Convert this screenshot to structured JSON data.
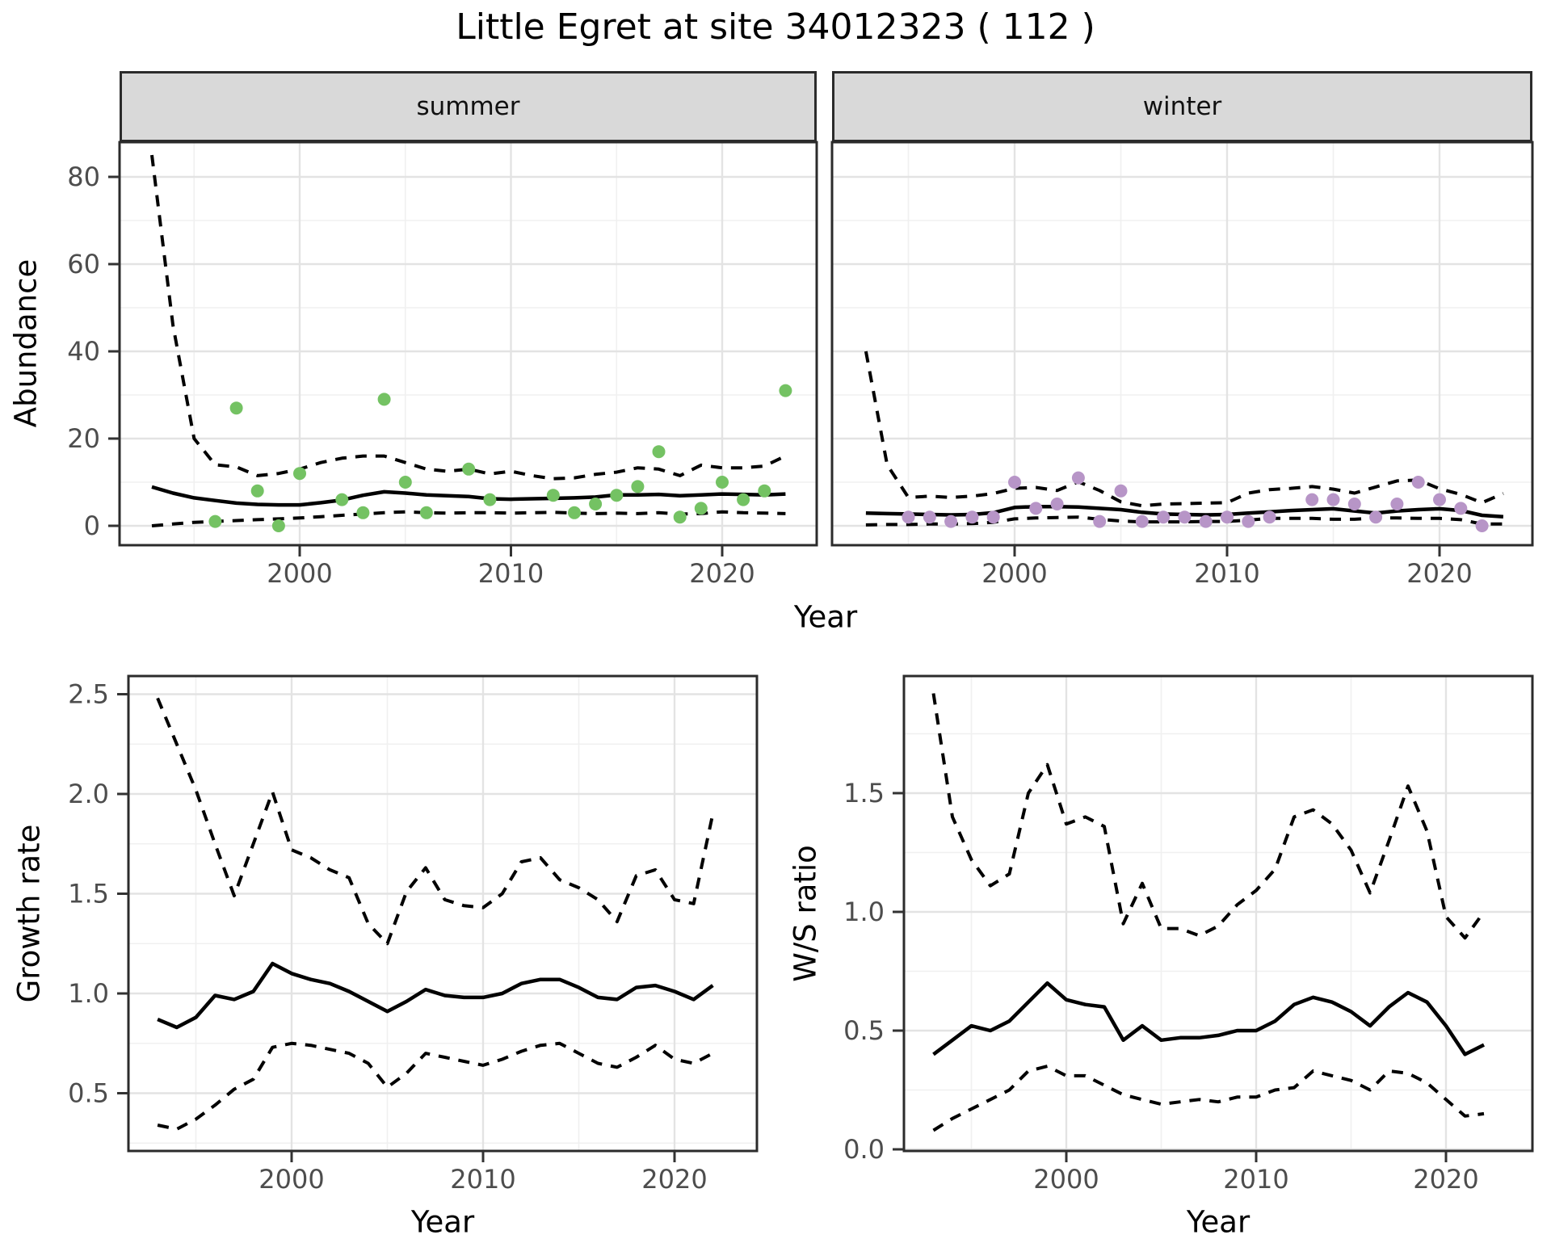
{
  "title": "Little Egret at site 34012323 ( 112 )",
  "axes": {
    "top_y_label": "Abundance",
    "top_x_label": "Year",
    "bottom_left_y_label": "Growth rate",
    "bottom_left_x_label": "Year",
    "bottom_right_y_label": "W/S ratio",
    "bottom_right_x_label": "Year"
  },
  "colors": {
    "summer_point": "#74c263",
    "winter_point": "#b795c7",
    "line": "#000000",
    "panel_border": "#2b2b2b",
    "strip_bg": "#d9d9d9",
    "grid_major": "#e3e3e3",
    "grid_minor": "#f0f0f0",
    "tick_mark": "#333333",
    "tick_text": "#4d4d4d"
  },
  "chart_data": [
    {
      "id": "abundance-summer",
      "type": "scatter",
      "facet_label": "summer",
      "xlabel": "Year",
      "ylabel": "Abundance",
      "xlim": [
        1991.4,
        2024.5
      ],
      "ylim": [
        -4.4,
        88
      ],
      "x_tick_values": [
        2000,
        2010,
        2020
      ],
      "x_tick_labels": [
        "2000",
        "2010",
        "2020"
      ],
      "x_minor": [
        1995,
        2005,
        2015
      ],
      "y_tick_values": [
        0,
        20,
        40,
        60,
        80
      ],
      "y_tick_labels": [
        "0",
        "20",
        "40",
        "60",
        "80"
      ],
      "y_minor": [
        10,
        30,
        50,
        70
      ],
      "point_color": "#74c263",
      "points": {
        "x": [
          1996,
          1997,
          1998,
          1999,
          2000,
          2002,
          2003,
          2004,
          2005,
          2006,
          2008,
          2009,
          2012,
          2013,
          2014,
          2015,
          2016,
          2017,
          2018,
          2019,
          2020,
          2021,
          2022,
          2023
        ],
        "y": [
          1,
          27,
          8,
          0,
          12,
          6,
          3,
          29,
          10,
          3,
          13,
          6,
          7,
          3,
          5,
          7,
          9,
          17,
          2,
          4,
          10,
          6,
          8,
          31
        ]
      },
      "series": [
        {
          "name": "mean",
          "style": "solid",
          "x_start": 1993,
          "values": [
            8.9,
            7.5,
            6.4,
            5.8,
            5.2,
            4.9,
            4.8,
            4.8,
            5.3,
            5.9,
            7.0,
            7.8,
            7.5,
            7.1,
            6.9,
            6.7,
            6.2,
            6.1,
            6.2,
            6.3,
            6.4,
            6.6,
            7.1,
            7.1,
            7.2,
            6.9,
            7.1,
            7.3,
            7.2,
            7.1,
            7.3
          ]
        },
        {
          "name": "upper-ci",
          "style": "dashed",
          "x_start": 1993,
          "values": [
            85,
            46,
            20,
            14,
            13.5,
            11.5,
            12,
            13,
            14.5,
            15.5,
            16,
            16,
            14.5,
            13,
            12.5,
            13,
            11.9,
            12.5,
            11.5,
            10.8,
            11,
            11.8,
            12.3,
            13.3,
            13,
            11.5,
            13.9,
            13.3,
            13.3,
            13.7,
            16
          ]
        },
        {
          "name": "lower-ci",
          "style": "dashed",
          "x_start": 1993,
          "values": [
            0,
            0.4,
            0.8,
            1.0,
            1.2,
            1.4,
            1.6,
            1.8,
            2.1,
            2.4,
            2.7,
            3.0,
            3.2,
            3.0,
            2.9,
            3.0,
            3.0,
            2.9,
            3.0,
            3.1,
            2.9,
            2.8,
            2.9,
            2.8,
            3.0,
            2.7,
            2.8,
            3.2,
            3.0,
            2.9,
            2.8
          ]
        }
      ]
    },
    {
      "id": "abundance-winter",
      "type": "scatter",
      "facet_label": "winter",
      "xlabel": "Year",
      "ylabel": "Abundance",
      "xlim": [
        1991.4,
        2024.4
      ],
      "ylim": [
        -4.4,
        88
      ],
      "x_tick_values": [
        2000,
        2010,
        2020
      ],
      "x_tick_labels": [
        "2000",
        "2010",
        "2020"
      ],
      "x_minor": [
        1995,
        2005,
        2015
      ],
      "y_tick_values": [],
      "y_tick_labels": [],
      "y_minor": [
        10,
        30,
        50,
        70
      ],
      "point_color": "#b795c7",
      "points": {
        "x": [
          1995,
          1996,
          1997,
          1998,
          1999,
          2000,
          2001,
          2002,
          2003,
          2004,
          2005,
          2006,
          2007,
          2008,
          2009,
          2010,
          2011,
          2012,
          2014,
          2015,
          2016,
          2017,
          2018,
          2019,
          2020,
          2021,
          2022
        ],
        "y": [
          2,
          2,
          1,
          2,
          2,
          10,
          4,
          5,
          11,
          1,
          8,
          1,
          2,
          2,
          1,
          2,
          1,
          2,
          6,
          6,
          5,
          2,
          5,
          10,
          6,
          4,
          0
        ]
      },
      "series": [
        {
          "name": "mean",
          "style": "solid",
          "x_start": 1993,
          "values": [
            2.9,
            2.8,
            2.7,
            2.6,
            2.5,
            2.6,
            3.0,
            4.2,
            4.4,
            4.4,
            4.3,
            4.0,
            3.7,
            3.1,
            2.7,
            2.6,
            2.5,
            2.6,
            2.9,
            3.2,
            3.5,
            3.7,
            3.9,
            3.4,
            2.9,
            3.4,
            3.7,
            3.9,
            3.5,
            2.4,
            2.1
          ]
        },
        {
          "name": "upper-ci",
          "style": "dashed",
          "x_start": 1993,
          "values": [
            40,
            14,
            6.5,
            6.8,
            6.5,
            6.8,
            7.4,
            8.6,
            8.8,
            8.1,
            10.1,
            8.1,
            5.5,
            4.6,
            5.0,
            5.1,
            5.2,
            5.3,
            7.5,
            8.3,
            8.6,
            9.0,
            8.4,
            7.5,
            8.9,
            10.3,
            10.5,
            8.5,
            7.2,
            5.3,
            7.4
          ]
        },
        {
          "name": "lower-ci",
          "style": "dashed",
          "x_start": 1993,
          "values": [
            0.2,
            0.3,
            0.3,
            0.4,
            0.4,
            0.5,
            0.8,
            1.6,
            1.8,
            1.9,
            2.0,
            1.5,
            1.1,
            0.9,
            0.9,
            0.9,
            1.0,
            1.0,
            1.3,
            1.7,
            1.7,
            1.7,
            1.5,
            1.5,
            1.8,
            1.8,
            1.7,
            1.7,
            1.4,
            0.4,
            0.4
          ]
        }
      ]
    },
    {
      "id": "growth-rate",
      "type": "line",
      "facet_label": "",
      "xlabel": "Year",
      "ylabel": "Growth rate",
      "xlim": [
        1991.4,
        2024.4
      ],
      "ylim": [
        0.21,
        2.59
      ],
      "x_tick_values": [
        2000,
        2010,
        2020
      ],
      "x_tick_labels": [
        "2000",
        "2010",
        "2020"
      ],
      "x_minor": [
        1995,
        2005,
        2015
      ],
      "y_tick_values": [
        0.5,
        1.0,
        1.5,
        2.0,
        2.5
      ],
      "y_tick_labels": [
        "0.5",
        "1.0",
        "1.5",
        "2.0",
        "2.5"
      ],
      "y_minor": [
        0.25,
        0.75,
        1.25,
        1.75,
        2.25
      ],
      "series": [
        {
          "name": "mean",
          "style": "solid",
          "x_start": 1993,
          "values": [
            0.87,
            0.83,
            0.88,
            0.99,
            0.97,
            1.01,
            1.15,
            1.1,
            1.07,
            1.05,
            1.01,
            0.96,
            0.91,
            0.96,
            1.02,
            0.99,
            0.98,
            0.98,
            1.0,
            1.05,
            1.07,
            1.07,
            1.03,
            0.98,
            0.97,
            1.03,
            1.04,
            1.01,
            0.97,
            1.04
          ]
        },
        {
          "name": "upper-ci",
          "style": "dashed",
          "x_start": 1993,
          "values": [
            2.48,
            2.25,
            2.02,
            1.75,
            1.49,
            1.75,
            2.01,
            1.72,
            1.68,
            1.62,
            1.58,
            1.35,
            1.25,
            1.51,
            1.63,
            1.47,
            1.44,
            1.43,
            1.5,
            1.66,
            1.68,
            1.57,
            1.53,
            1.47,
            1.36,
            1.59,
            1.62,
            1.47,
            1.45,
            1.9
          ]
        },
        {
          "name": "lower-ci",
          "style": "dashed",
          "x_start": 1993,
          "values": [
            0.34,
            0.32,
            0.37,
            0.44,
            0.52,
            0.57,
            0.73,
            0.75,
            0.74,
            0.72,
            0.7,
            0.65,
            0.53,
            0.6,
            0.7,
            0.68,
            0.66,
            0.64,
            0.67,
            0.71,
            0.74,
            0.75,
            0.7,
            0.65,
            0.63,
            0.68,
            0.74,
            0.67,
            0.65,
            0.7
          ]
        }
      ]
    },
    {
      "id": "ws-ratio",
      "type": "line",
      "facet_label": "",
      "xlabel": "Year",
      "ylabel": "W/S ratio",
      "xlim": [
        1991.4,
        2024.4
      ],
      "ylim": [
        -0.01,
        1.99
      ],
      "x_tick_values": [
        2000,
        2010,
        2020
      ],
      "x_tick_labels": [
        "2000",
        "2010",
        "2020"
      ],
      "x_minor": [
        1995,
        2005,
        2015
      ],
      "y_tick_values": [
        0.0,
        0.5,
        1.0,
        1.5
      ],
      "y_tick_labels": [
        "0.0",
        "0.5",
        "1.0",
        "1.5"
      ],
      "y_minor": [
        0.25,
        0.75,
        1.25,
        1.75
      ],
      "series": [
        {
          "name": "mean",
          "style": "solid",
          "x_start": 1993,
          "values": [
            0.4,
            0.46,
            0.52,
            0.5,
            0.54,
            0.62,
            0.7,
            0.63,
            0.61,
            0.6,
            0.46,
            0.52,
            0.46,
            0.47,
            0.47,
            0.48,
            0.5,
            0.5,
            0.54,
            0.61,
            0.64,
            0.62,
            0.58,
            0.52,
            0.6,
            0.66,
            0.62,
            0.52,
            0.4,
            0.44
          ]
        },
        {
          "name": "upper-ci",
          "style": "dashed",
          "x_start": 1993,
          "values": [
            1.92,
            1.4,
            1.22,
            1.11,
            1.16,
            1.5,
            1.62,
            1.37,
            1.4,
            1.36,
            0.95,
            1.12,
            0.93,
            0.93,
            0.9,
            0.94,
            1.03,
            1.09,
            1.18,
            1.4,
            1.43,
            1.37,
            1.26,
            1.08,
            1.3,
            1.53,
            1.34,
            0.98,
            0.89,
            1.0
          ]
        },
        {
          "name": "lower-ci",
          "style": "dashed",
          "x_start": 1993,
          "values": [
            0.08,
            0.13,
            0.17,
            0.21,
            0.25,
            0.33,
            0.35,
            0.31,
            0.31,
            0.27,
            0.23,
            0.21,
            0.19,
            0.2,
            0.21,
            0.2,
            0.22,
            0.22,
            0.25,
            0.26,
            0.33,
            0.31,
            0.29,
            0.25,
            0.33,
            0.32,
            0.28,
            0.21,
            0.14,
            0.15
          ]
        }
      ]
    }
  ]
}
